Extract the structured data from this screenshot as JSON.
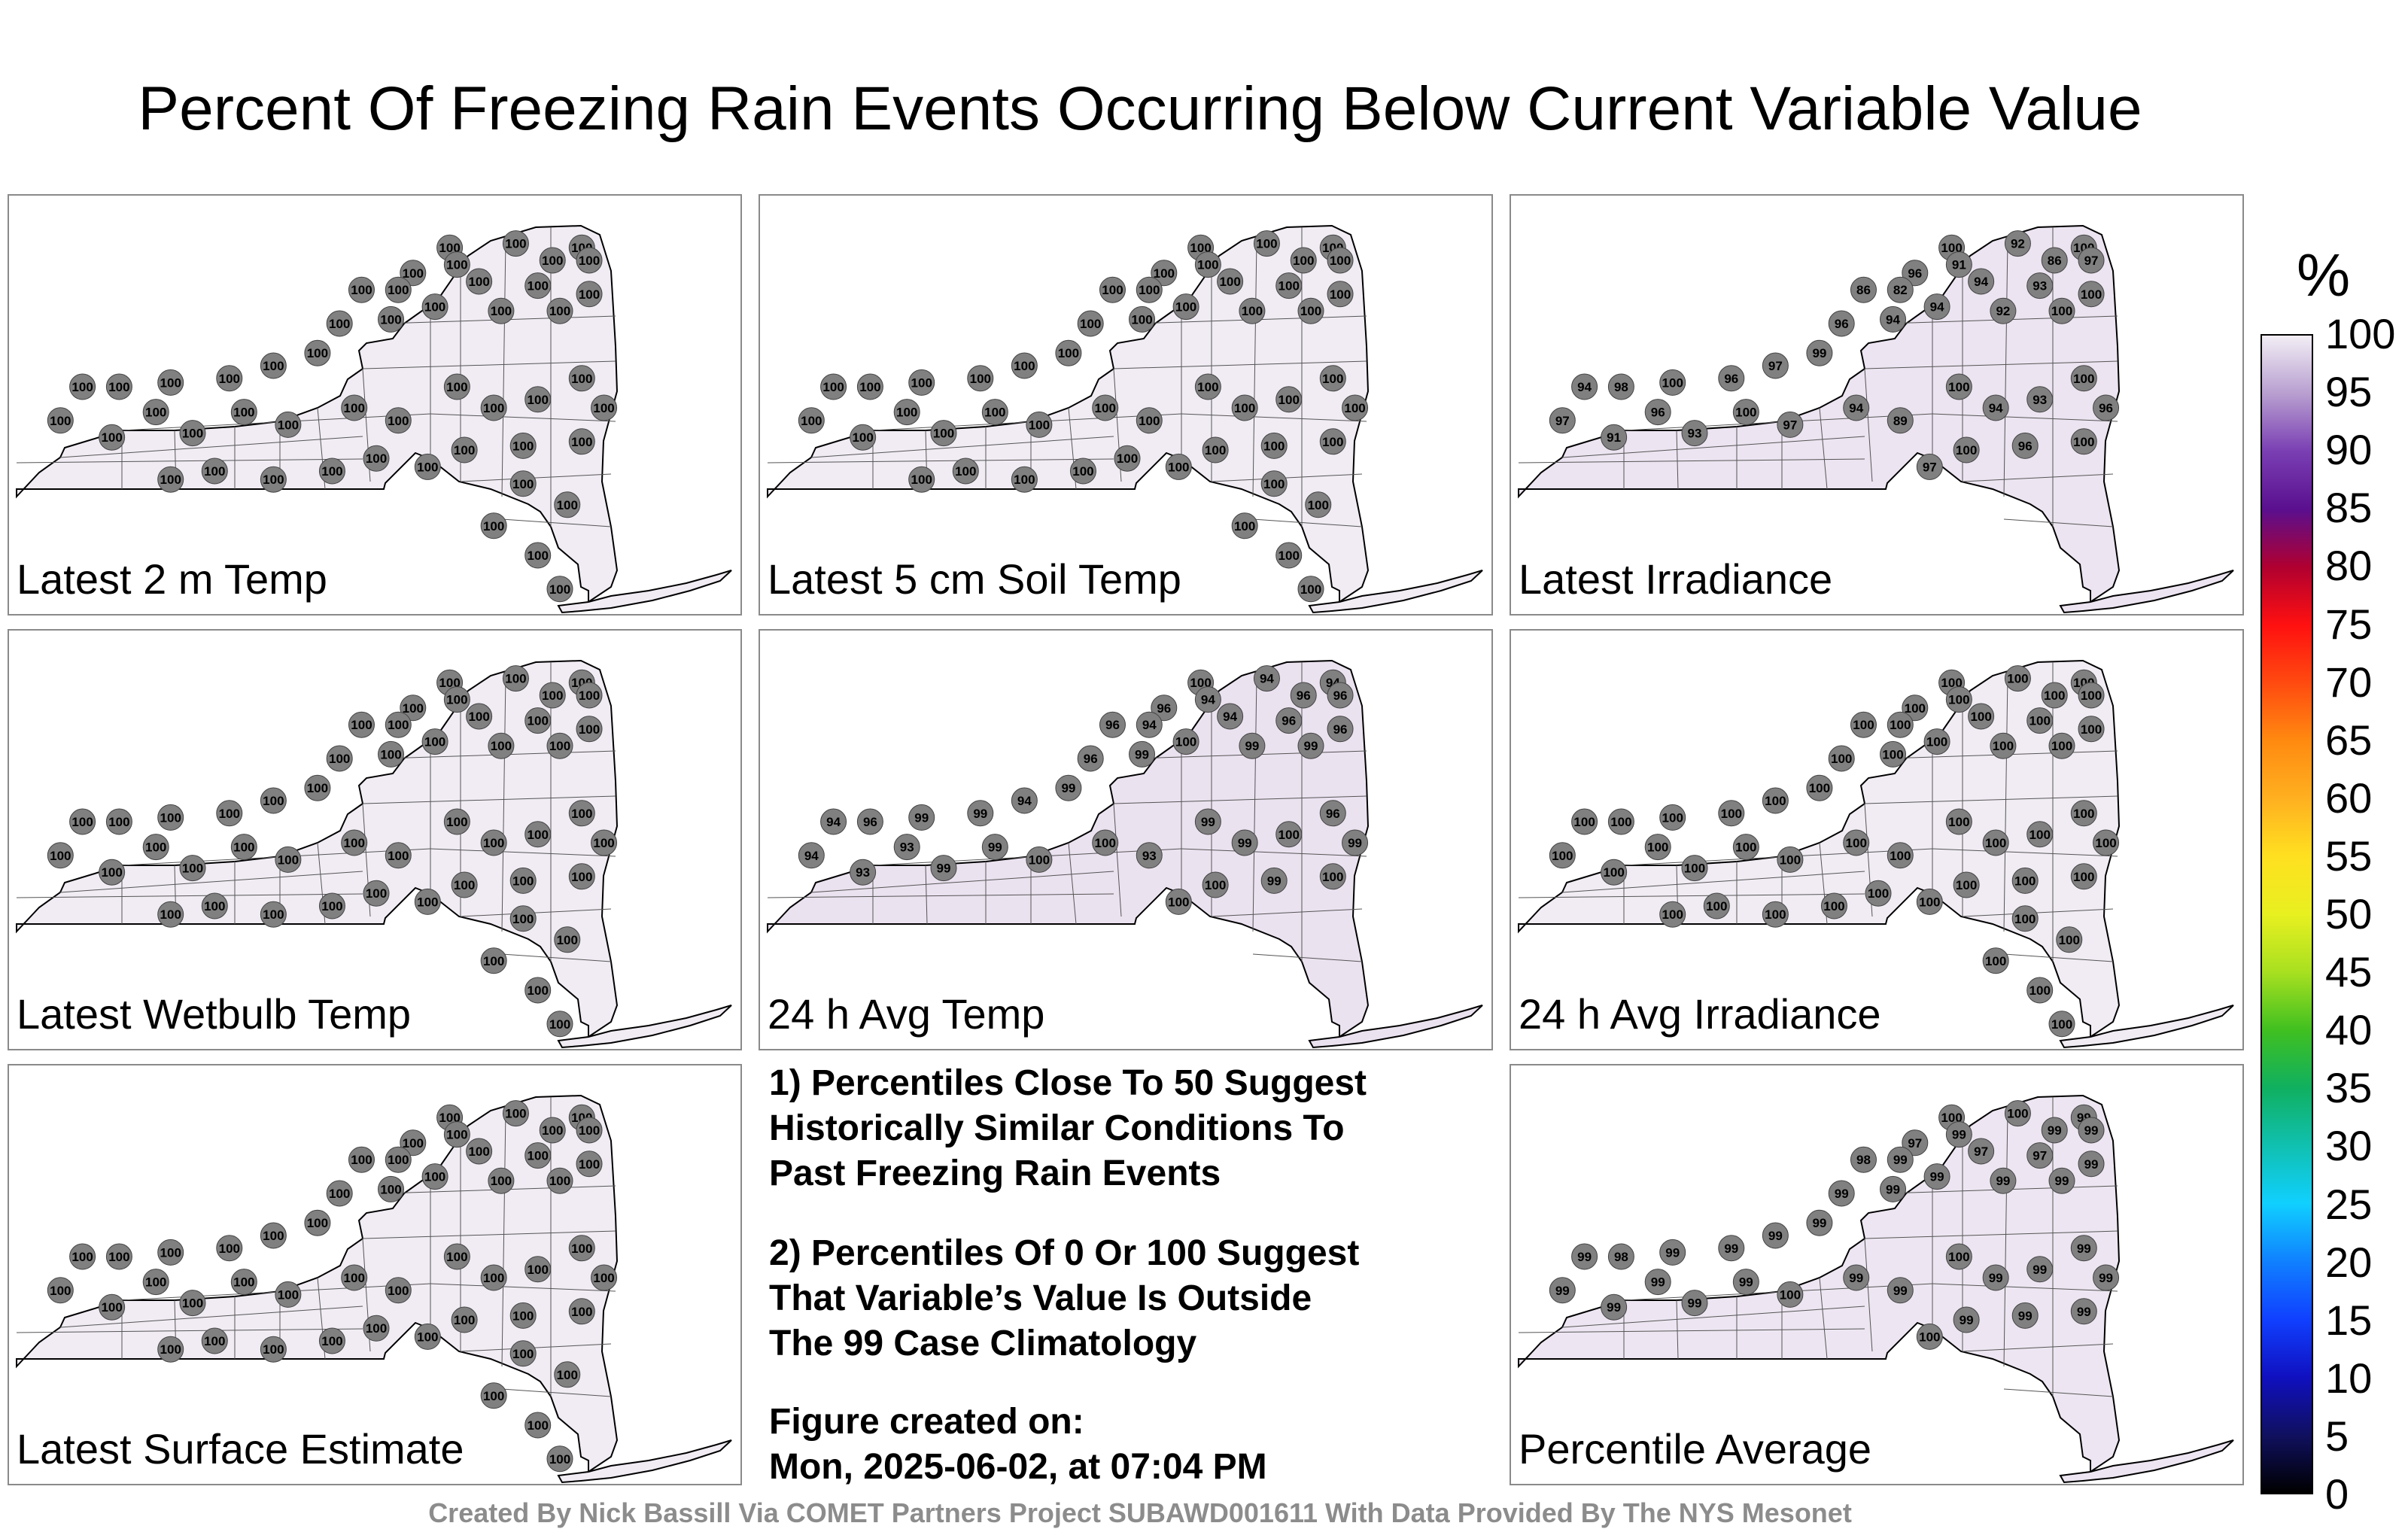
{
  "title": "Percent Of Freezing Rain Events Occurring Below Current Variable Value",
  "panels": [
    {
      "label": "Latest 2 m Temp",
      "fill": "#f1ecf4",
      "values": [
        "100",
        "100",
        "100",
        "100",
        "100",
        "100",
        "100",
        "100",
        "100",
        "100",
        "100",
        "100",
        "100",
        "100",
        "100",
        "100",
        "100",
        "100",
        "100",
        "100",
        "100",
        "100",
        "100",
        "100",
        "100",
        "100",
        "100",
        "100",
        "100",
        "100",
        "100",
        "100",
        "100",
        "100",
        "100",
        "100",
        "100",
        "100",
        "100",
        "100",
        "100",
        "100",
        "100",
        "100",
        "100",
        "100",
        "100",
        "100",
        "100",
        "100"
      ]
    },
    {
      "label": "Latest 5 cm Soil Temp",
      "fill": "#f1ecf4",
      "values": [
        "100",
        "100",
        "100",
        "100",
        "100",
        "100",
        "100",
        "100",
        "100",
        "100",
        "100",
        "100",
        "100",
        "100",
        "100",
        "100",
        "100",
        "100",
        "100",
        "100",
        "100",
        "100",
        "100",
        "100",
        "100",
        "100",
        "100",
        "100",
        "100",
        "100",
        "100",
        "100",
        "100",
        "100",
        "100",
        "100",
        "100",
        "100",
        "100",
        "100",
        "100",
        "100",
        "100",
        "100",
        "100",
        "100",
        "100",
        "100",
        "100",
        "100"
      ]
    },
    {
      "label": "Latest Irradiance",
      "fill": "#ece4f1",
      "values": [
        "100",
        "92",
        "100",
        "97",
        "86",
        "91",
        "96",
        "86",
        "82",
        "94",
        "93",
        "100",
        "100",
        "92",
        "94",
        "94",
        "96",
        "99",
        "97",
        "96",
        "100",
        "98",
        "94",
        "97",
        "91",
        "96",
        "93",
        "100",
        "97",
        "94",
        "89",
        "100",
        "94",
        "93",
        "100",
        "96",
        "100",
        "96",
        "100",
        "97"
      ]
    },
    {
      "label": "Latest Wetbulb Temp",
      "fill": "#f1ecf4",
      "values": [
        "100",
        "100",
        "100",
        "100",
        "100",
        "100",
        "100",
        "100",
        "100",
        "100",
        "100",
        "100",
        "100",
        "100",
        "100",
        "100",
        "100",
        "100",
        "100",
        "100",
        "100",
        "100",
        "100",
        "100",
        "100",
        "100",
        "100",
        "100",
        "100",
        "100",
        "100",
        "100",
        "100",
        "100",
        "100",
        "100",
        "100",
        "100",
        "100",
        "100",
        "100",
        "100",
        "100",
        "100",
        "100",
        "100",
        "100",
        "100",
        "100",
        "100"
      ]
    },
    {
      "label": "24 h Avg Temp",
      "fill": "#ebe2f0",
      "values": [
        "100",
        "94",
        "94",
        "96",
        "96",
        "94",
        "96",
        "96",
        "94",
        "94",
        "96",
        "96",
        "99",
        "99",
        "100",
        "99",
        "96",
        "99",
        "94",
        "99",
        "99",
        "96",
        "94",
        "94",
        "93",
        "93",
        "99",
        "99",
        "100",
        "100",
        "93",
        "99",
        "99",
        "100",
        "96",
        "99",
        "100",
        "99",
        "100",
        "100"
      ]
    },
    {
      "label": "24 h Avg Irradiance",
      "fill": "#f1ecf4",
      "values": [
        "100",
        "100",
        "100",
        "100",
        "100",
        "100",
        "100",
        "100",
        "100",
        "100",
        "100",
        "100",
        "100",
        "100",
        "100",
        "100",
        "100",
        "100",
        "100",
        "100",
        "100",
        "100",
        "100",
        "100",
        "100",
        "100",
        "100",
        "100",
        "100",
        "100",
        "100",
        "100",
        "100",
        "100",
        "100",
        "100",
        "100",
        "100",
        "100",
        "100",
        "100",
        "100",
        "100",
        "100",
        "100",
        "100",
        "100",
        "100",
        "100",
        "100"
      ]
    },
    {
      "label": "Latest Surface Estimate",
      "fill": "#f1ecf4",
      "values": [
        "100",
        "100",
        "100",
        "100",
        "100",
        "100",
        "100",
        "100",
        "100",
        "100",
        "100",
        "100",
        "100",
        "100",
        "100",
        "100",
        "100",
        "100",
        "100",
        "100",
        "100",
        "100",
        "100",
        "100",
        "100",
        "100",
        "100",
        "100",
        "100",
        "100",
        "100",
        "100",
        "100",
        "100",
        "100",
        "100",
        "100",
        "100",
        "100",
        "100",
        "100",
        "100",
        "100",
        "100",
        "100",
        "100",
        "100",
        "100",
        "100",
        "100"
      ]
    },
    {
      "label": "Percentile Average",
      "fill": "#ede6f2",
      "values": [
        "100",
        "100",
        "99",
        "99",
        "99",
        "99",
        "97",
        "98",
        "99",
        "97",
        "97",
        "99",
        "99",
        "99",
        "99",
        "99",
        "99",
        "99",
        "99",
        "99",
        "99",
        "98",
        "99",
        "99",
        "99",
        "99",
        "99",
        "99",
        "100",
        "99",
        "99",
        "100",
        "99",
        "99",
        "99",
        "99",
        "99",
        "99",
        "99",
        "100"
      ]
    }
  ],
  "notes": {
    "n1": [
      "1) Percentiles Close To 50 Suggest",
      "Historically Similar Conditions To",
      "Past Freezing Rain Events"
    ],
    "n2": [
      "2) Percentiles Of 0 Or 100 Suggest",
      "That Variable’s Value Is Outside",
      "The 99 Case Climatology"
    ],
    "n3": [
      "Figure created on:",
      "Mon, 2025-06-02, at 07:04 PM"
    ]
  },
  "colorbar": {
    "title": "%",
    "ticks": [
      "100",
      "95",
      "90",
      "85",
      "80",
      "75",
      "70",
      "65",
      "60",
      "55",
      "50",
      "45",
      "40",
      "35",
      "30",
      "25",
      "20",
      "15",
      "10",
      "5",
      "0"
    ],
    "colors": [
      "#f2eef5",
      "#b89fd0",
      "#7a3fb3",
      "#5a0f8f",
      "#b00030",
      "#ff1010",
      "#ff4a10",
      "#ff8a10",
      "#ffb020",
      "#ffe020",
      "#e8f020",
      "#a8e020",
      "#40c020",
      "#10b060",
      "#10c0b0",
      "#10d0ff",
      "#1080ff",
      "#1040ff",
      "#1010c0",
      "#101060",
      "#000000"
    ]
  },
  "credit": "Created By Nick Bassill Via COMET Partners Project SUBAWD001611 With Data Provided By The NYS Mesonet"
}
